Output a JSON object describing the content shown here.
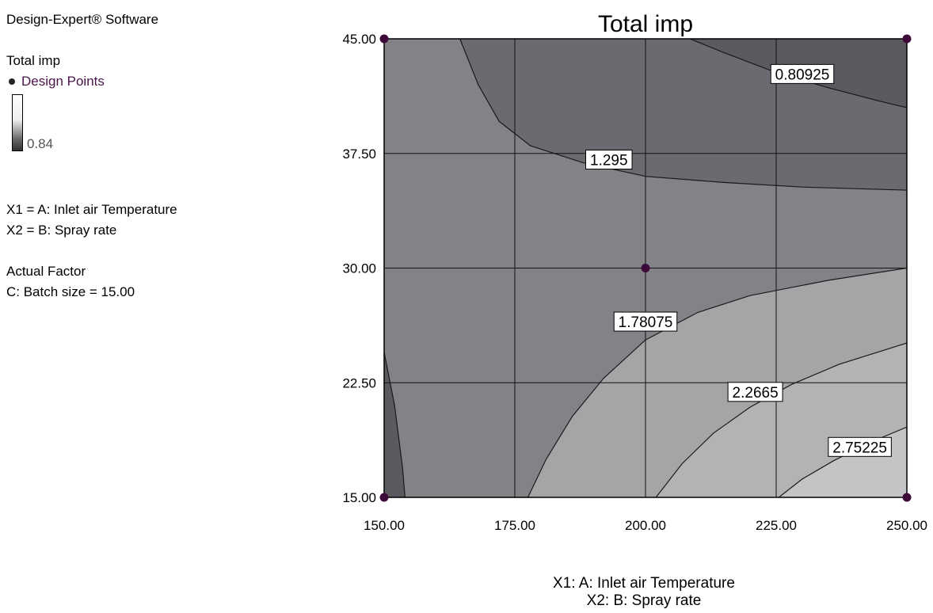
{
  "legend": {
    "software": "Design-Expert® Software",
    "response_name": "Total imp",
    "design_points_label": "Design Points",
    "scale_low": "0.84",
    "x1_definition": "X1 = A: Inlet air Temperature",
    "x2_definition": "X2 = B: Spray rate",
    "actual_factor_title": "Actual Factor",
    "actual_factor": "C: Batch size = 15.00"
  },
  "axis_captions": {
    "x1": "X1: A: Inlet air Temperature",
    "x2": "X2: B: Spray rate"
  },
  "colors": {
    "point": "#3d0a3a",
    "region_darkest": "#5a5a60",
    "region_dark": "#6a6a70",
    "region_mid": "#828287",
    "region_light": "#a5a5a8",
    "region_lighter": "#b3b3b5",
    "region_lightest": "#c4c4c6"
  },
  "chart_data": {
    "type": "contour",
    "title": "Total imp",
    "xlim": [
      150,
      250
    ],
    "ylim": [
      15,
      45
    ],
    "x_ticks": [
      "150.00",
      "175.00",
      "200.00",
      "225.00",
      "250.00"
    ],
    "y_ticks": [
      "15.00",
      "22.50",
      "30.00",
      "37.50",
      "45.00"
    ],
    "grid": true,
    "design_points": [
      {
        "x": 150,
        "y": 45
      },
      {
        "x": 250,
        "y": 45
      },
      {
        "x": 200,
        "y": 30
      },
      {
        "x": 150,
        "y": 15
      },
      {
        "x": 250,
        "y": 15
      }
    ],
    "contours": [
      {
        "label": "0.80925",
        "value": 0.80925,
        "points": [
          [
            208.5,
            45
          ],
          [
            215,
            44.1
          ],
          [
            225,
            42.8
          ],
          [
            235,
            41.8
          ],
          [
            245,
            40.9
          ],
          [
            250,
            40.5
          ]
        ],
        "label_at": [
          230,
          42.7
        ]
      },
      {
        "label": "1.295",
        "value": 1.295,
        "points": [
          [
            164.5,
            45
          ],
          [
            168,
            42
          ],
          [
            172,
            39.6
          ],
          [
            178,
            38
          ],
          [
            188,
            36.9
          ],
          [
            200,
            36
          ],
          [
            215,
            35.6
          ],
          [
            230,
            35.3
          ],
          [
            250,
            35.1
          ]
        ],
        "label_at": [
          193,
          37.1
        ]
      },
      {
        "label": "1.78075",
        "value": 1.78075,
        "points": [
          [
            177.5,
            15
          ],
          [
            181,
            17.5
          ],
          [
            186,
            20.3
          ],
          [
            192,
            22.8
          ],
          [
            200,
            25.3
          ],
          [
            210,
            27.1
          ],
          [
            220,
            28.2
          ],
          [
            235,
            29.2
          ],
          [
            250,
            30
          ]
        ],
        "label_at": [
          200,
          26.5
        ]
      },
      {
        "label": "2.2665",
        "value": 2.2665,
        "points": [
          [
            202,
            15
          ],
          [
            207,
            17.2
          ],
          [
            213,
            19.2
          ],
          [
            220,
            20.9
          ],
          [
            228,
            22.4
          ],
          [
            237,
            23.7
          ],
          [
            250,
            25.1
          ]
        ],
        "label_at": [
          221,
          21.9
        ]
      },
      {
        "label": "2.75225",
        "value": 2.75225,
        "points": [
          [
            225.5,
            15
          ],
          [
            230,
            16.2
          ],
          [
            236,
            17.4
          ],
          [
            243,
            18.6
          ],
          [
            250,
            19.6
          ]
        ],
        "label_at": [
          241,
          18.3
        ]
      }
    ],
    "edge_contour": {
      "points": [
        [
          150,
          24.5
        ],
        [
          152,
          21
        ],
        [
          153.5,
          17
        ],
        [
          154,
          15
        ]
      ]
    }
  }
}
